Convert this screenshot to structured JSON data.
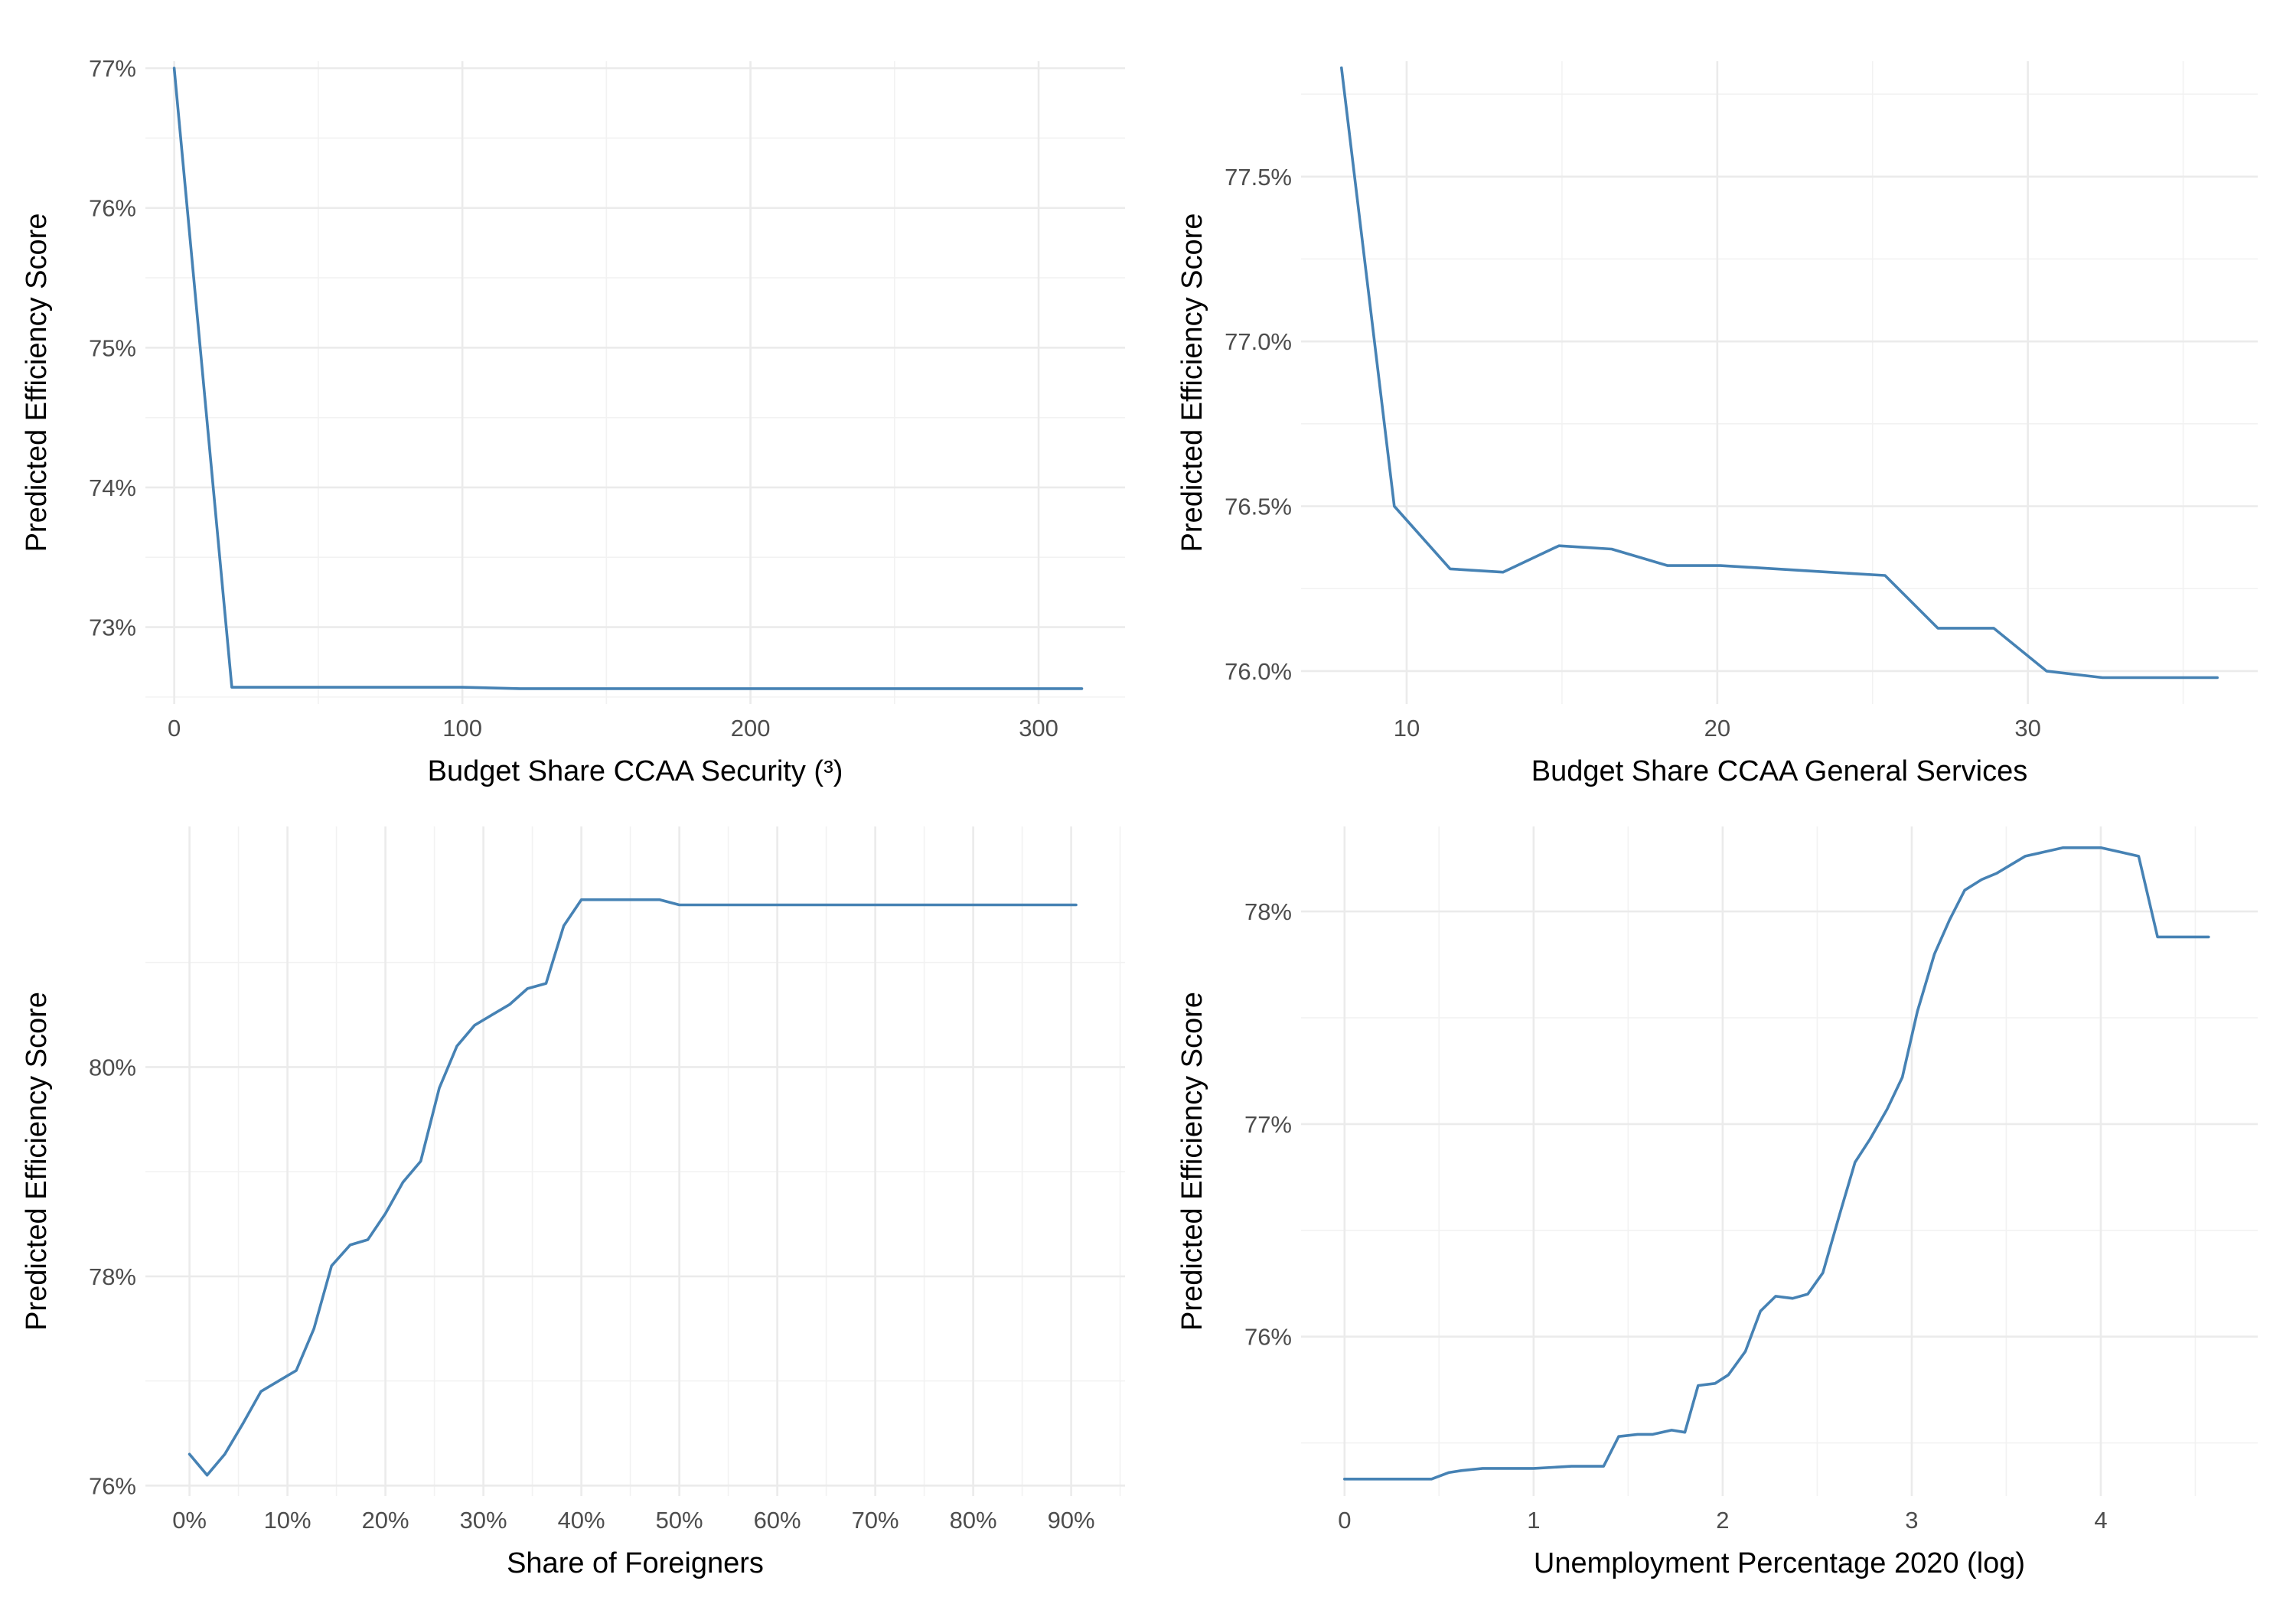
{
  "colors": {
    "line": "#4682b4",
    "grid_major": "#ebebeb",
    "grid_minor": "#f2f2f2",
    "tick_text": "#4d4d4d"
  },
  "chart_data": [
    {
      "type": "line",
      "xlabel": "Budget Share CCAA Security (³)",
      "ylabel": "Predicted Efficiency Score",
      "xlim": [
        -10,
        330
      ],
      "ylim": [
        72.45,
        77.05
      ],
      "x_ticks": [
        0,
        100,
        200,
        300
      ],
      "x_tick_labels": [
        "0",
        "100",
        "200",
        "300"
      ],
      "y_ticks": [
        73,
        74,
        75,
        76,
        77
      ],
      "y_tick_labels": [
        "73%",
        "74%",
        "75%",
        "76%",
        "77%"
      ],
      "grid": true,
      "x": [
        0,
        20,
        40,
        60,
        80,
        100,
        120,
        140,
        160,
        200,
        240,
        280,
        315
      ],
      "y": [
        77.0,
        72.57,
        72.57,
        72.57,
        72.57,
        72.57,
        72.56,
        72.56,
        72.56,
        72.56,
        72.56,
        72.56,
        72.56
      ]
    },
    {
      "type": "line",
      "xlabel": "Budget Share CCAA General Services",
      "ylabel": "Predicted Efficiency Score",
      "xlim": [
        6.6,
        37.4
      ],
      "ylim": [
        75.9,
        77.85
      ],
      "x_ticks": [
        10,
        20,
        30
      ],
      "x_tick_labels": [
        "10",
        "20",
        "30"
      ],
      "y_ticks": [
        76.0,
        76.5,
        77.0,
        77.5
      ],
      "y_tick_labels": [
        "76.0%",
        "76.5%",
        "77.0%",
        "77.5%"
      ],
      "grid": true,
      "x": [
        7.9,
        9.6,
        11.4,
        13.1,
        14.9,
        16.6,
        18.4,
        20.1,
        21.9,
        23.6,
        25.4,
        27.1,
        28.9,
        30.6,
        32.4,
        34.1,
        36.1
      ],
      "y": [
        77.83,
        76.5,
        76.31,
        76.3,
        76.38,
        76.37,
        76.32,
        76.32,
        76.31,
        76.3,
        76.29,
        76.13,
        76.13,
        76.0,
        75.98,
        75.98,
        75.98
      ]
    },
    {
      "type": "line",
      "xlabel": "Share of Foreigners",
      "ylabel": "Predicted Efficiency Score",
      "xlim": [
        -4.5,
        95.5
      ],
      "ylim": [
        75.9,
        82.3
      ],
      "x_ticks": [
        0,
        10,
        20,
        30,
        40,
        50,
        60,
        70,
        80,
        90
      ],
      "x_tick_labels": [
        "0%",
        "10%",
        "20%",
        "30%",
        "40%",
        "50%",
        "60%",
        "70%",
        "80%",
        "90%"
      ],
      "y_ticks": [
        76,
        78,
        80
      ],
      "y_tick_labels": [
        "76%",
        "78%",
        "80%"
      ],
      "grid": true,
      "x": [
        0,
        1.8,
        3.6,
        5.5,
        7.3,
        9.1,
        10.9,
        12.7,
        14.5,
        16.4,
        18.2,
        20.0,
        21.8,
        23.6,
        25.5,
        27.3,
        29.1,
        30.9,
        32.7,
        34.5,
        36.4,
        38.2,
        40.0,
        42.0,
        45.0,
        48.0,
        50.0,
        60.0,
        70.0,
        80.0,
        90.5
      ],
      "y": [
        76.3,
        76.1,
        76.3,
        76.6,
        76.9,
        77.0,
        77.1,
        77.5,
        78.1,
        78.3,
        78.35,
        78.6,
        78.9,
        79.1,
        79.8,
        80.2,
        80.4,
        80.5,
        80.6,
        80.75,
        80.8,
        81.35,
        81.6,
        81.6,
        81.6,
        81.6,
        81.55,
        81.55,
        81.55,
        81.55,
        81.55
      ]
    },
    {
      "type": "line",
      "xlabel": "Unemployment Percentage 2020 (log)",
      "ylabel": "Predicted Efficiency Score",
      "xlim": [
        -0.23,
        4.83
      ],
      "ylim": [
        75.25,
        78.4
      ],
      "x_ticks": [
        0,
        1,
        2,
        3,
        4
      ],
      "x_tick_labels": [
        "0",
        "1",
        "2",
        "3",
        "4"
      ],
      "y_ticks": [
        76,
        77,
        78
      ],
      "y_tick_labels": [
        "76%",
        "77%",
        "78%"
      ],
      "grid": true,
      "x": [
        0,
        0.2,
        0.46,
        0.55,
        0.62,
        0.73,
        1.0,
        1.2,
        1.37,
        1.45,
        1.55,
        1.63,
        1.73,
        1.8,
        1.87,
        1.96,
        2.03,
        2.12,
        2.2,
        2.28,
        2.37,
        2.45,
        2.53,
        2.62,
        2.7,
        2.78,
        2.87,
        2.95,
        3.03,
        3.12,
        3.2,
        3.28,
        3.37,
        3.45,
        3.6,
        3.8,
        4.0,
        4.1,
        4.2,
        4.3,
        4.57
      ],
      "y": [
        75.33,
        75.33,
        75.33,
        75.36,
        75.37,
        75.38,
        75.38,
        75.39,
        75.39,
        75.53,
        75.54,
        75.54,
        75.56,
        75.55,
        75.77,
        75.78,
        75.82,
        75.93,
        76.12,
        76.19,
        76.18,
        76.2,
        76.3,
        76.58,
        76.82,
        76.93,
        77.07,
        77.22,
        77.53,
        77.8,
        77.96,
        78.1,
        78.15,
        78.18,
        78.26,
        78.3,
        78.3,
        78.28,
        78.26,
        77.88,
        77.88
      ]
    }
  ]
}
